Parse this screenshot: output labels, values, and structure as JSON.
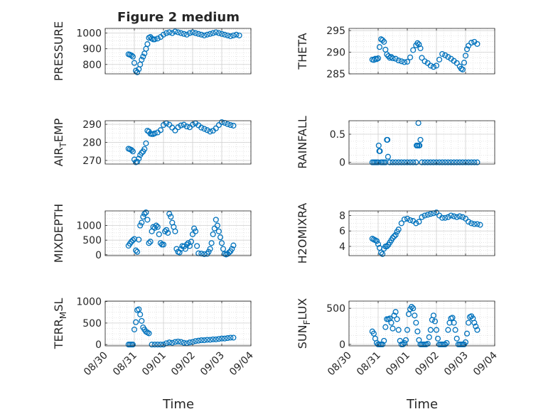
{
  "figure": {
    "title": "Figure 2 medium",
    "xlabel_left": "Time",
    "xlabel_right": "Time",
    "x_ticks": [
      "08/30",
      "08/31",
      "09/01",
      "09/02",
      "09/03",
      "09/04"
    ],
    "marker_color": "#0072BD",
    "grid_color": "#d9d9d9"
  },
  "chart_data": [
    {
      "type": "scatter",
      "id": "pressure",
      "ylabel": "PRESSURE",
      "ylabel_sub": "",
      "yticks": [
        800,
        900,
        1000
      ],
      "ylim": [
        740,
        1030
      ],
      "xlim": [
        0,
        5
      ],
      "x": [
        0.8,
        0.85,
        0.9,
        0.95,
        1.0,
        1.05,
        1.1,
        1.15,
        1.2,
        1.25,
        1.3,
        1.35,
        1.4,
        1.45,
        1.5,
        1.55,
        1.6,
        1.65,
        1.7,
        1.8,
        1.9,
        2.0,
        2.1,
        2.2,
        2.3,
        2.4,
        2.5,
        2.6,
        2.7,
        2.8,
        2.9,
        3.0,
        3.1,
        3.2,
        3.3,
        3.4,
        3.5,
        3.6,
        3.7,
        3.8,
        3.9,
        4.0,
        4.1,
        4.2,
        4.3,
        4.4,
        4.5,
        4.6
      ],
      "y": [
        865,
        862,
        858,
        850,
        810,
        760,
        750,
        770,
        800,
        830,
        850,
        870,
        900,
        930,
        970,
        975,
        965,
        960,
        960,
        965,
        975,
        990,
        1000,
        1005,
        1000,
        1010,
        1005,
        1000,
        995,
        990,
        1000,
        1005,
        1000,
        995,
        990,
        985,
        990,
        995,
        1000,
        1005,
        1000,
        995,
        990,
        985,
        980,
        985,
        990,
        985
      ]
    },
    {
      "type": "scatter",
      "id": "theta",
      "ylabel": "THETA",
      "ylabel_sub": "",
      "yticks": [
        285,
        290,
        295
      ],
      "ylim": [
        285,
        295.5
      ],
      "xlim": [
        0,
        5
      ],
      "x": [
        0.8,
        0.85,
        0.9,
        0.95,
        1.0,
        1.05,
        1.1,
        1.15,
        1.2,
        1.25,
        1.3,
        1.35,
        1.4,
        1.45,
        1.5,
        1.6,
        1.7,
        1.8,
        1.9,
        2.0,
        2.1,
        2.2,
        2.3,
        2.35,
        2.4,
        2.45,
        2.5,
        2.6,
        2.7,
        2.8,
        2.9,
        3.0,
        3.1,
        3.2,
        3.3,
        3.4,
        3.5,
        3.6,
        3.7,
        3.8,
        3.85,
        3.9,
        3.95,
        4.0,
        4.05,
        4.1,
        4.2,
        4.3,
        4.4
      ],
      "y": [
        288.3,
        288.2,
        288.5,
        288.4,
        288.6,
        291.2,
        293.0,
        292.8,
        292.4,
        290.6,
        289.5,
        289.1,
        288.7,
        288.9,
        288.6,
        288.5,
        288.1,
        287.9,
        287.7,
        287.8,
        288.8,
        290.5,
        291.6,
        292.1,
        291.8,
        290.9,
        288.7,
        287.9,
        287.5,
        286.9,
        286.6,
        286.9,
        288.3,
        289.6,
        289.3,
        288.9,
        288.5,
        288.0,
        287.5,
        286.7,
        286.2,
        286.0,
        287.6,
        289.2,
        290.7,
        291.5,
        292.2,
        292.4,
        291.9
      ]
    },
    {
      "type": "scatter",
      "id": "air_temp",
      "ylabel": "AIR",
      "ylabel_sub": "T",
      "ylabel_tail": "EMP",
      "yticks": [
        270,
        280,
        290
      ],
      "ylim": [
        268,
        292
      ],
      "xlim": [
        0,
        5
      ],
      "x": [
        0.8,
        0.85,
        0.9,
        0.95,
        1.0,
        1.05,
        1.1,
        1.15,
        1.2,
        1.25,
        1.3,
        1.35,
        1.4,
        1.45,
        1.5,
        1.55,
        1.6,
        1.65,
        1.7,
        1.8,
        1.9,
        2.0,
        2.1,
        2.2,
        2.3,
        2.4,
        2.5,
        2.6,
        2.7,
        2.8,
        2.9,
        3.0,
        3.1,
        3.2,
        3.3,
        3.4,
        3.5,
        3.6,
        3.7,
        3.8,
        3.9,
        4.0,
        4.1,
        4.2,
        4.3,
        4.4
      ],
      "y": [
        276.5,
        276.2,
        275.8,
        275.0,
        270.5,
        269.0,
        269.3,
        271.0,
        273.0,
        274.2,
        275.0,
        276.3,
        279.5,
        286.5,
        286.0,
        284.8,
        284.6,
        284.6,
        285.0,
        285.5,
        286.8,
        289.6,
        290.6,
        289.8,
        288.2,
        286.6,
        288.4,
        289.4,
        289.8,
        288.8,
        288.4,
        289.8,
        290.6,
        289.5,
        288.2,
        287.5,
        286.8,
        286.0,
        286.5,
        287.8,
        289.6,
        291.2,
        290.8,
        290.1,
        289.6,
        289.3
      ]
    },
    {
      "type": "scatter",
      "id": "rainfall",
      "ylabel": "RAINFALL",
      "ylabel_sub": "",
      "yticks": [
        0,
        0.5
      ],
      "ylim": [
        -0.03,
        0.74
      ],
      "xlim": [
        0,
        5
      ],
      "x": [
        0.8,
        0.85,
        0.9,
        0.95,
        1.0,
        1.02,
        1.04,
        1.06,
        1.1,
        1.15,
        1.2,
        1.25,
        1.3,
        1.32,
        1.34,
        1.4,
        1.5,
        1.6,
        1.7,
        1.8,
        1.9,
        2.0,
        2.1,
        2.2,
        2.3,
        2.32,
        2.35,
        2.38,
        2.4,
        2.42,
        2.45,
        2.5,
        2.6,
        2.7,
        2.8,
        2.9,
        3.0,
        3.1,
        3.2,
        3.3,
        3.4,
        3.5,
        3.6,
        3.7,
        3.8,
        3.9,
        4.0,
        4.1,
        4.2,
        4.3,
        4.4
      ],
      "y": [
        0,
        0,
        0,
        0,
        0,
        0.3,
        0.2,
        0.2,
        0,
        0,
        0,
        0,
        0.4,
        0.4,
        0.1,
        0,
        0,
        0,
        0,
        0,
        0,
        0,
        0,
        0,
        0,
        0.3,
        0.3,
        0.7,
        0.3,
        0.3,
        0.4,
        0,
        0,
        0,
        0,
        0,
        0,
        0,
        0,
        0,
        0,
        0,
        0,
        0,
        0,
        0,
        0,
        0,
        0,
        0,
        0
      ]
    },
    {
      "type": "scatter",
      "id": "mixdepth",
      "ylabel": "MIXDEPTH",
      "ylabel_sub": "",
      "yticks": [
        0,
        500,
        1000
      ],
      "ylim": [
        -30,
        1500
      ],
      "xlim": [
        0,
        5
      ],
      "x": [
        0.8,
        0.85,
        0.9,
        0.95,
        1.0,
        1.05,
        1.1,
        1.15,
        1.2,
        1.25,
        1.3,
        1.35,
        1.4,
        1.45,
        1.5,
        1.55,
        1.6,
        1.65,
        1.7,
        1.75,
        1.8,
        1.85,
        1.9,
        1.95,
        2.0,
        2.05,
        2.1,
        2.15,
        2.2,
        2.25,
        2.3,
        2.35,
        2.4,
        2.45,
        2.5,
        2.55,
        2.6,
        2.65,
        2.7,
        2.75,
        2.8,
        2.85,
        2.9,
        2.95,
        3.0,
        3.05,
        3.1,
        3.15,
        3.2,
        3.3,
        3.4,
        3.5,
        3.55,
        3.6,
        3.65,
        3.7,
        3.75,
        3.8,
        3.85,
        3.9,
        3.95,
        4.0,
        4.05,
        4.1,
        4.15,
        4.2,
        4.25,
        4.3,
        4.35,
        4.4
      ],
      "y": [
        310,
        380,
        450,
        500,
        540,
        150,
        100,
        520,
        1000,
        1100,
        1300,
        1400,
        1450,
        1200,
        400,
        450,
        800,
        950,
        920,
        1000,
        950,
        700,
        400,
        350,
        350,
        800,
        850,
        750,
        1400,
        1300,
        1100,
        950,
        800,
        200,
        100,
        80,
        200,
        300,
        280,
        200,
        350,
        400,
        300,
        450,
        700,
        900,
        800,
        300,
        50,
        40,
        20,
        30,
        100,
        200,
        400,
        700,
        900,
        1200,
        1000,
        800,
        600,
        400,
        200,
        30,
        10,
        30,
        80,
        120,
        200,
        320
      ]
    },
    {
      "type": "scatter",
      "id": "h2omixra",
      "ylabel": "H2OMIXRA",
      "ylabel_sub": "",
      "yticks": [
        4,
        6,
        8
      ],
      "ylim": [
        2.8,
        8.6
      ],
      "xlim": [
        0,
        5
      ],
      "x": [
        0.8,
        0.85,
        0.9,
        0.95,
        1.0,
        1.05,
        1.1,
        1.15,
        1.2,
        1.25,
        1.3,
        1.35,
        1.4,
        1.45,
        1.5,
        1.55,
        1.6,
        1.65,
        1.7,
        1.8,
        1.9,
        2.0,
        2.1,
        2.2,
        2.3,
        2.4,
        2.5,
        2.6,
        2.7,
        2.8,
        2.9,
        3.0,
        3.1,
        3.2,
        3.3,
        3.4,
        3.5,
        3.6,
        3.7,
        3.8,
        3.9,
        4.0,
        4.1,
        4.2,
        4.3,
        4.4,
        4.5
      ],
      "y": [
        5.0,
        4.9,
        4.8,
        4.7,
        4.3,
        3.8,
        3.2,
        3.0,
        3.7,
        4.0,
        4.0,
        4.2,
        4.5,
        4.8,
        5.1,
        5.3,
        5.5,
        5.9,
        6.2,
        7.0,
        7.5,
        7.6,
        7.4,
        7.3,
        7.0,
        7.2,
        7.8,
        8.0,
        8.1,
        8.2,
        8.3,
        8.4,
        8.0,
        7.7,
        7.7,
        7.8,
        8.0,
        7.9,
        7.8,
        7.9,
        7.8,
        7.6,
        7.2,
        7.0,
        6.9,
        6.9,
        6.8
      ]
    },
    {
      "type": "scatter",
      "id": "terr_msl",
      "ylabel": "TERR",
      "ylabel_sub": "M",
      "ylabel_tail": "SL",
      "yticks": [
        0,
        500,
        1000
      ],
      "ylim": [
        -30,
        1010
      ],
      "xlim": [
        0,
        5
      ],
      "x": [
        0.8,
        0.85,
        0.9,
        0.95,
        1.0,
        1.05,
        1.1,
        1.15,
        1.2,
        1.25,
        1.3,
        1.35,
        1.4,
        1.45,
        1.5,
        1.6,
        1.7,
        1.8,
        1.9,
        2.0,
        2.1,
        2.2,
        2.3,
        2.4,
        2.5,
        2.6,
        2.7,
        2.8,
        2.9,
        3.0,
        3.1,
        3.2,
        3.3,
        3.4,
        3.5,
        3.6,
        3.7,
        3.8,
        3.9,
        4.0,
        4.1,
        4.2,
        4.3,
        4.4
      ],
      "y": [
        0,
        0,
        0,
        0,
        350,
        520,
        800,
        820,
        700,
        550,
        400,
        350,
        300,
        280,
        260,
        0,
        0,
        0,
        0,
        0,
        30,
        50,
        40,
        60,
        70,
        60,
        40,
        30,
        50,
        60,
        80,
        90,
        100,
        100,
        110,
        110,
        120,
        120,
        130,
        140,
        140,
        150,
        160,
        160
      ]
    },
    {
      "type": "scatter",
      "id": "sun_flux",
      "ylabel": "SUN",
      "ylabel_sub": "F",
      "ylabel_tail": "LUX",
      "yticks": [
        0,
        500
      ],
      "ylim": [
        -20,
        600
      ],
      "xlim": [
        0,
        5
      ],
      "x": [
        0.8,
        0.85,
        0.9,
        0.95,
        1.0,
        1.05,
        1.1,
        1.15,
        1.2,
        1.25,
        1.3,
        1.35,
        1.4,
        1.45,
        1.5,
        1.55,
        1.6,
        1.65,
        1.7,
        1.75,
        1.8,
        1.85,
        1.9,
        1.95,
        2.0,
        2.05,
        2.1,
        2.15,
        2.2,
        2.25,
        2.3,
        2.35,
        2.4,
        2.45,
        2.5,
        2.55,
        2.6,
        2.65,
        2.7,
        2.75,
        2.8,
        2.85,
        2.9,
        2.95,
        3.0,
        3.05,
        3.1,
        3.15,
        3.2,
        3.25,
        3.3,
        3.35,
        3.4,
        3.45,
        3.5,
        3.55,
        3.6,
        3.65,
        3.7,
        3.75,
        3.8,
        3.85,
        3.9,
        3.95,
        4.0,
        4.05,
        4.1,
        4.15,
        4.2,
        4.25,
        4.3,
        4.35,
        4.4
      ],
      "y": [
        180,
        150,
        80,
        20,
        0,
        0,
        0,
        0,
        50,
        240,
        350,
        350,
        360,
        300,
        220,
        400,
        450,
        350,
        200,
        50,
        0,
        0,
        20,
        60,
        200,
        420,
        490,
        520,
        500,
        400,
        300,
        180,
        60,
        0,
        0,
        0,
        0,
        0,
        10,
        100,
        200,
        340,
        400,
        320,
        200,
        80,
        0,
        0,
        0,
        0,
        0,
        20,
        200,
        300,
        360,
        370,
        300,
        200,
        80,
        0,
        0,
        0,
        0,
        0,
        30,
        150,
        300,
        380,
        390,
        360,
        300,
        250,
        200
      ]
    }
  ]
}
